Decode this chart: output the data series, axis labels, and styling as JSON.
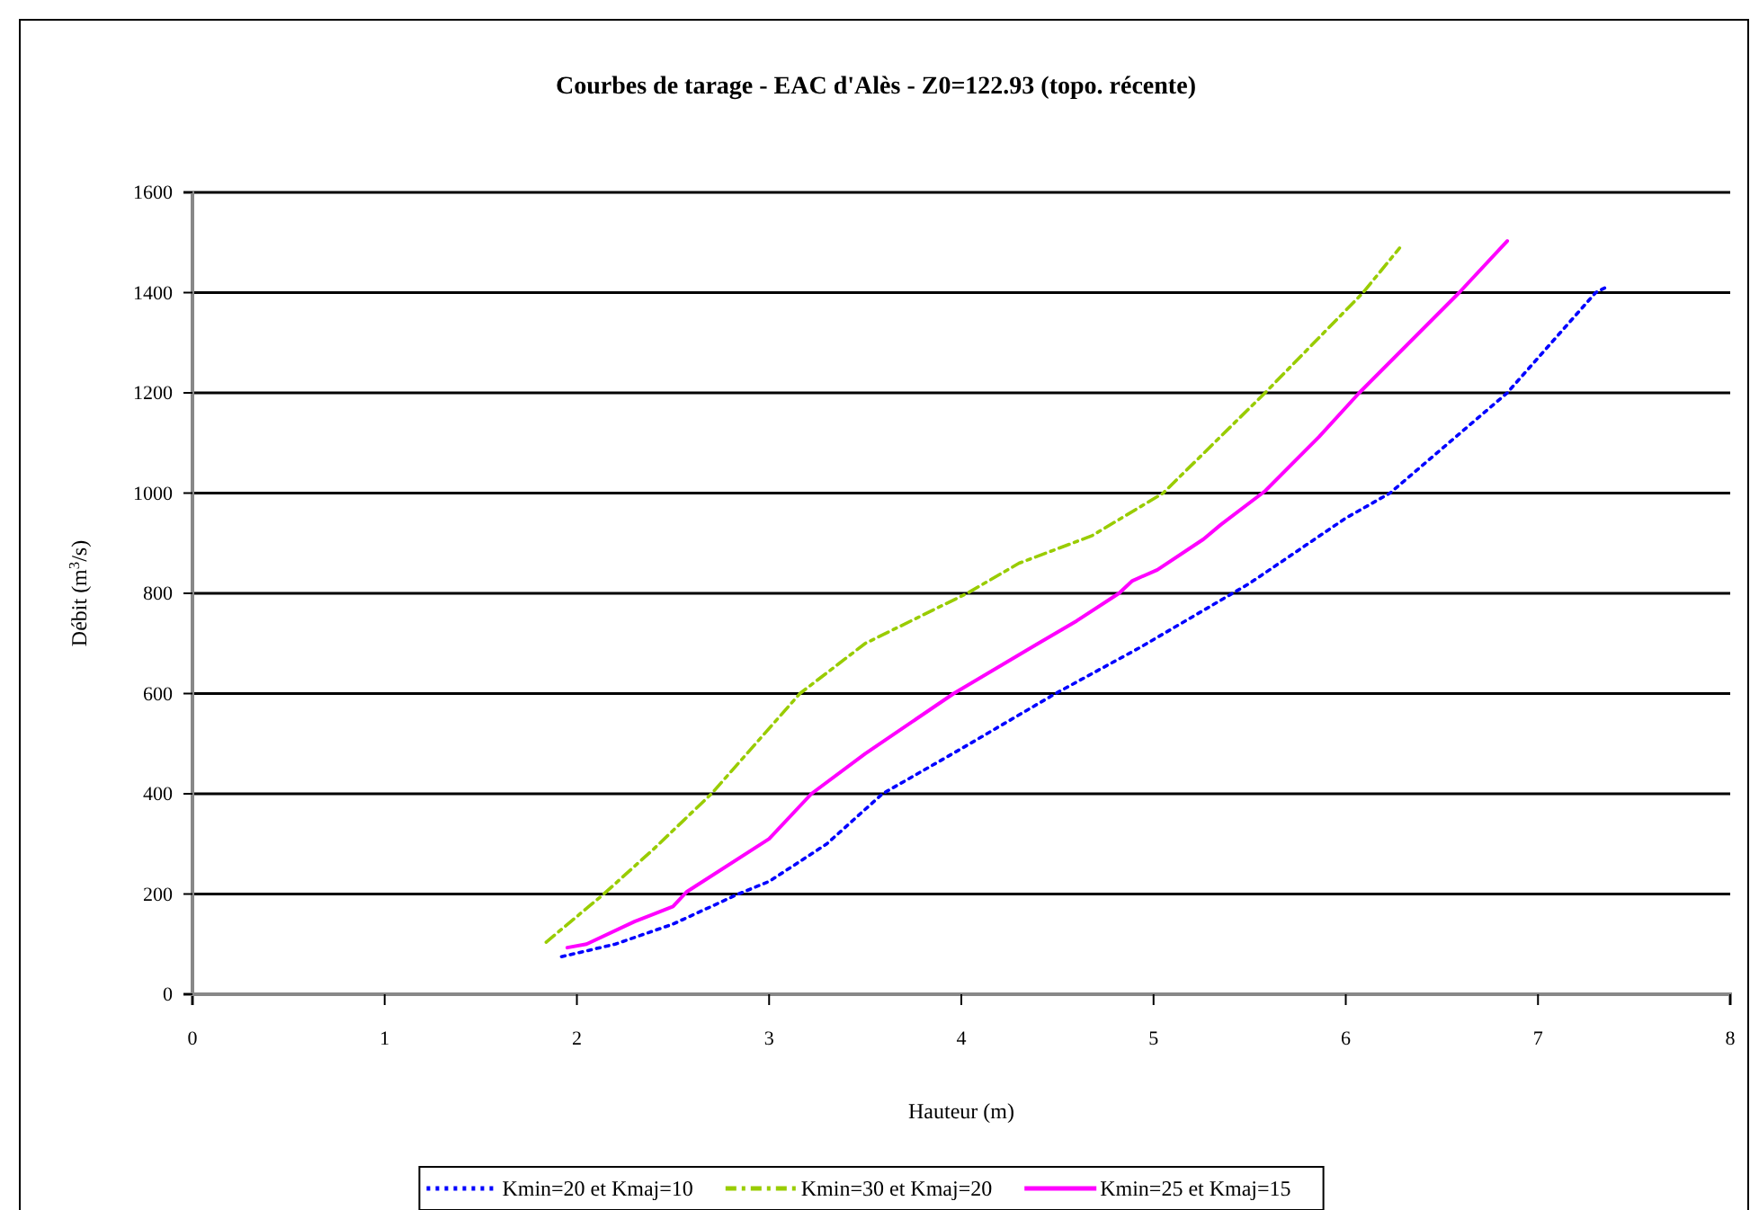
{
  "chart_data": {
    "type": "line",
    "title": "Courbes de tarage - EAC d'Alès - Z0=122.93 (topo. récente)",
    "xlabel": "Hauteur (m)",
    "ylabel": "Débit (m$^{3}$/s)",
    "xlim": [
      0,
      8
    ],
    "xticks": [
      0,
      1,
      2,
      3,
      4,
      5,
      6,
      7,
      8
    ],
    "ylim": [
      0,
      1600
    ],
    "yticks": [
      0,
      200,
      400,
      600,
      800,
      1000,
      1200,
      1400,
      1600
    ],
    "grid": "y",
    "legend": "bottom",
    "marker": "none",
    "series": [
      {
        "name": "Kmin=20 et Kmaj=10",
        "color": "#0000ff",
        "line_style": "dotted",
        "x": [
          1.92,
          2.2,
          2.5,
          2.84,
          3.0,
          3.3,
          3.59,
          4.0,
          4.49,
          4.93,
          5.5,
          6.0,
          6.23,
          6.84,
          7.3,
          7.35
        ],
        "values": [
          75,
          100,
          140,
          200,
          225,
          300,
          400,
          490,
          600,
          692,
          820,
          950,
          1000,
          1200,
          1400,
          1410
        ]
      },
      {
        "name": "Kmin=30 et Kmaj=20",
        "color": "#99cc00",
        "line_style": "dashdot",
        "x": [
          1.84,
          2.14,
          2.4,
          2.7,
          3.16,
          3.5,
          4.03,
          4.3,
          4.68,
          5.05,
          5.58,
          6.09,
          6.28
        ],
        "values": [
          104,
          200,
          290,
          400,
          600,
          700,
          800,
          860,
          915,
          1000,
          1200,
          1400,
          1489
        ]
      },
      {
        "name": "Kmin=25 et Kmaj=15",
        "color": "#ff00ff",
        "line_style": "solid",
        "x": [
          1.95,
          2.05,
          2.3,
          2.5,
          2.57,
          3.0,
          3.22,
          3.5,
          3.96,
          4.4,
          4.6,
          4.82,
          4.89,
          5.02,
          5.26,
          5.35,
          5.58,
          5.86,
          6.07,
          6.59,
          6.84
        ],
        "values": [
          93,
          100,
          145,
          175,
          204,
          310,
          400,
          480,
          600,
          700,
          745,
          800,
          825,
          847,
          908,
          937,
          1004,
          1112,
          1200,
          1400,
          1503
        ]
      }
    ]
  }
}
